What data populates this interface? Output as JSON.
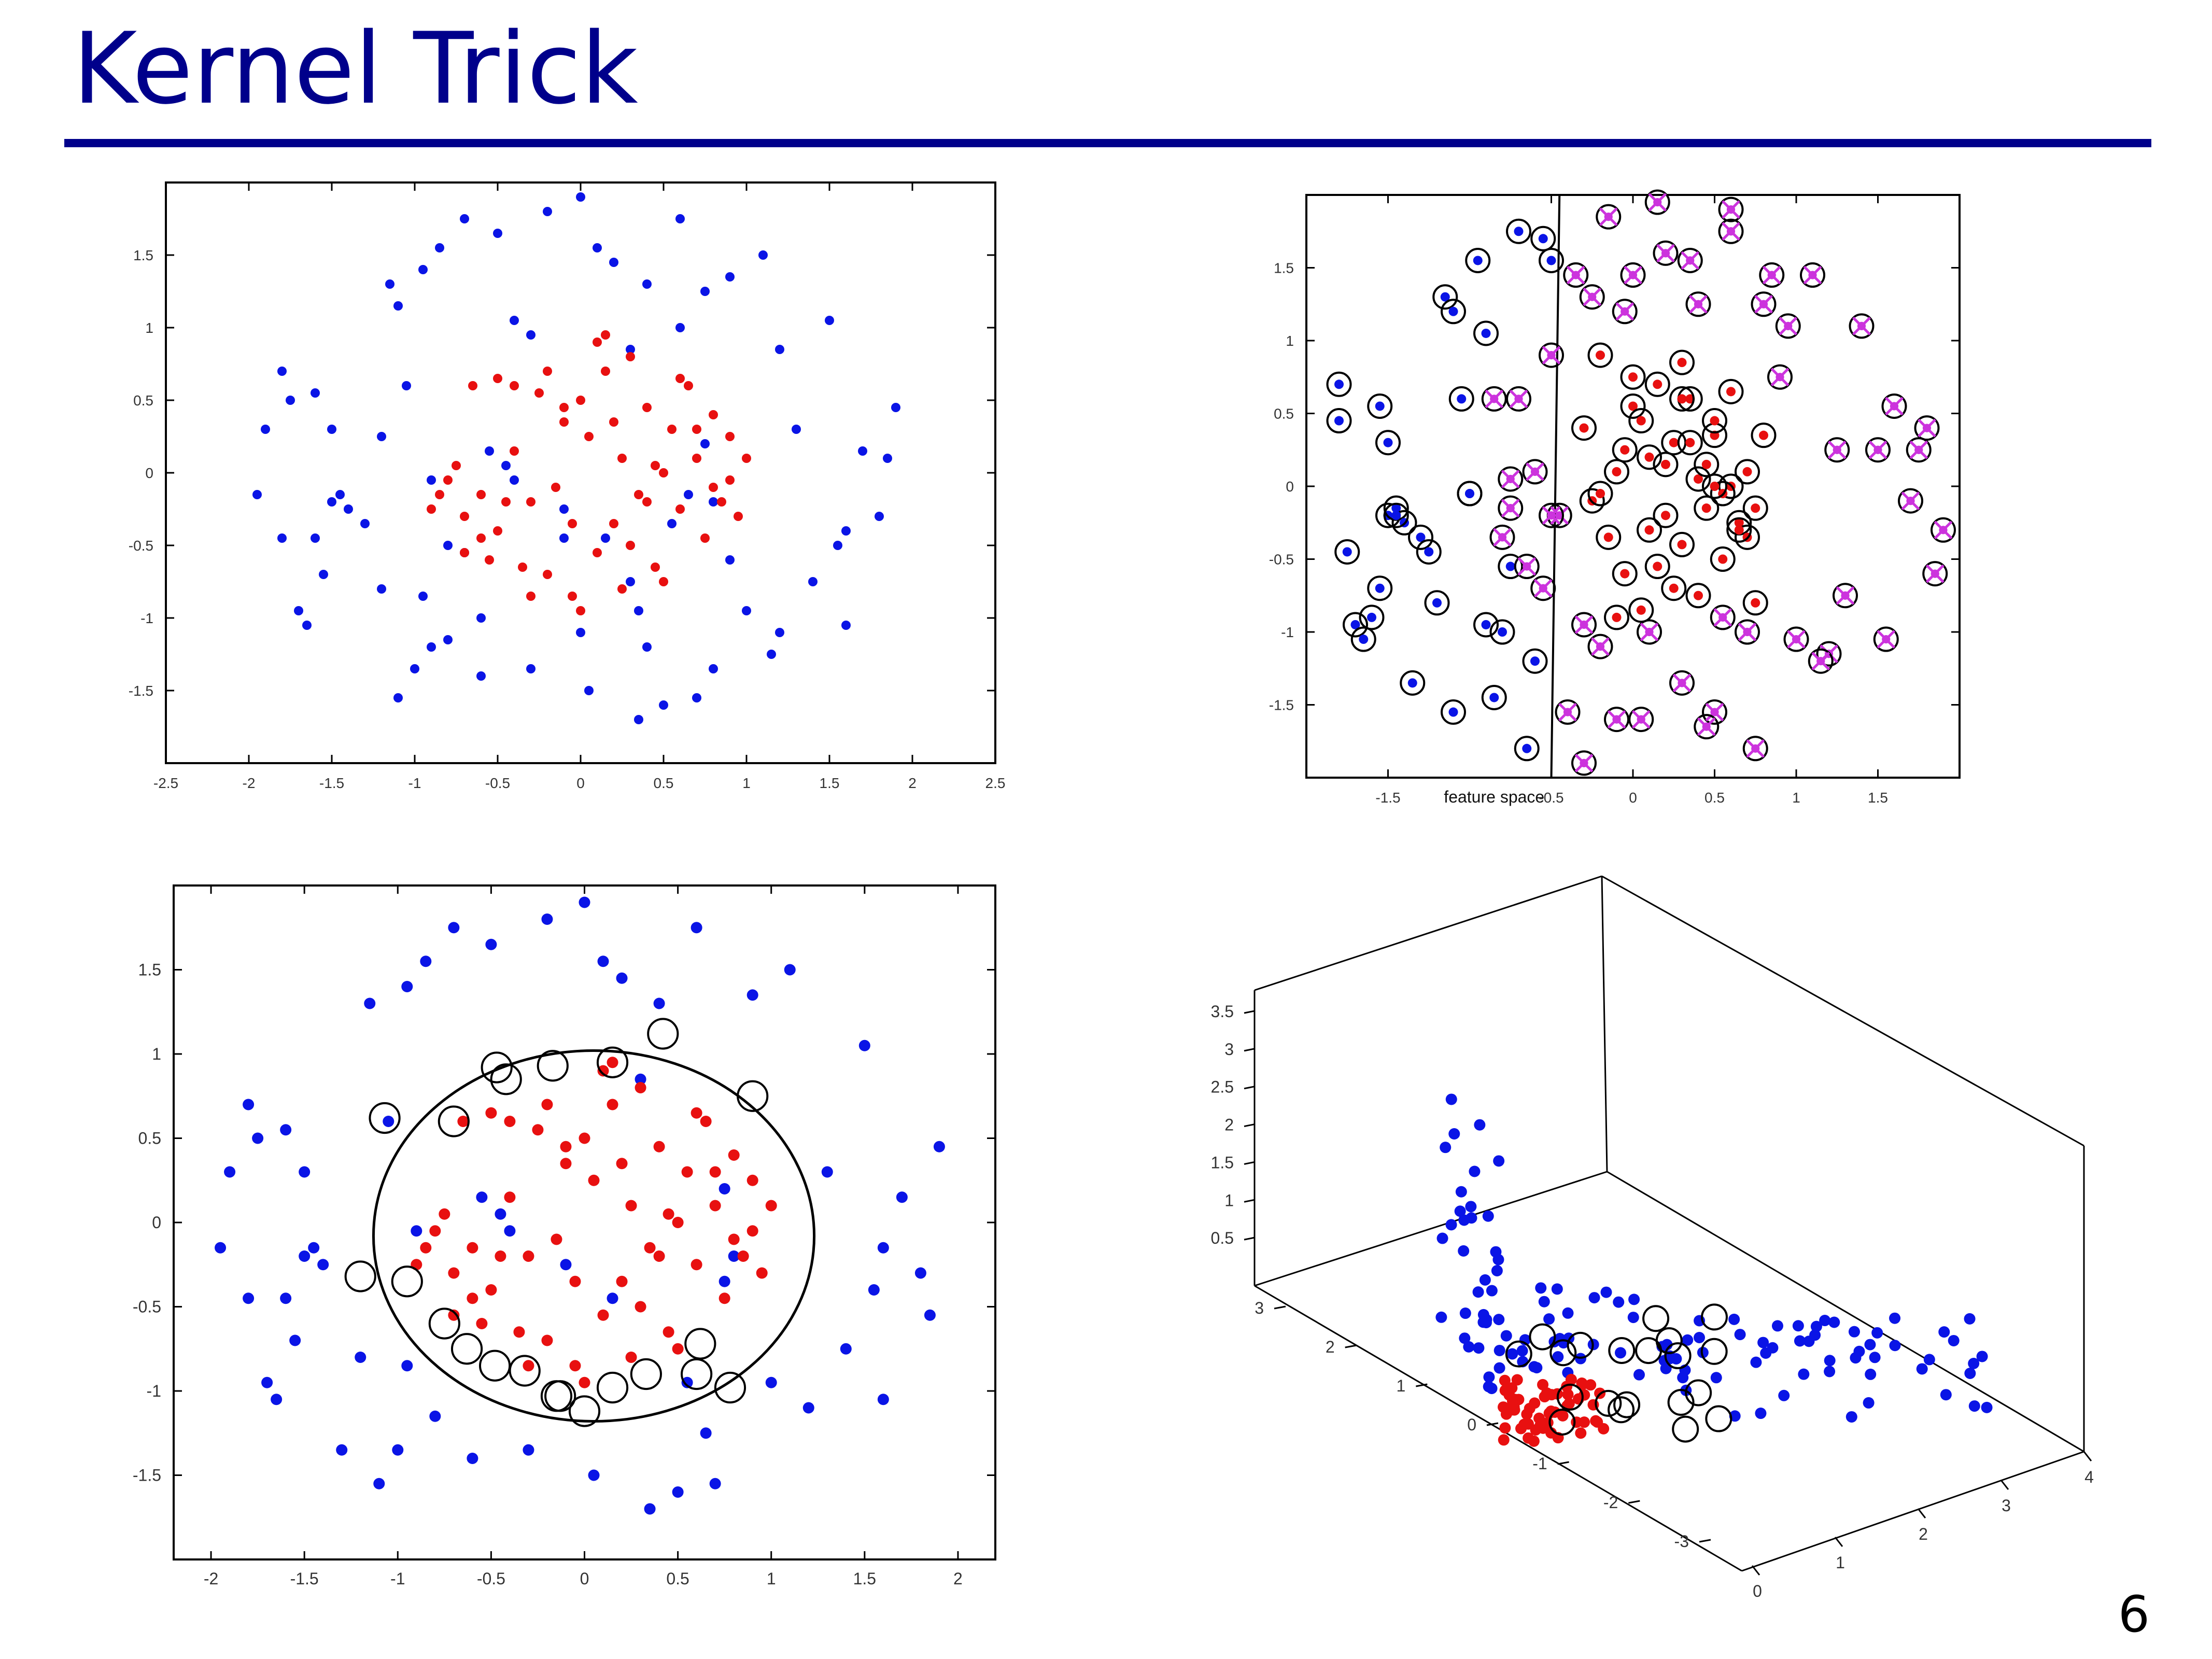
{
  "slide": {
    "title": "Kernel Trick",
    "page_number": "6"
  },
  "colors": {
    "accent": "#00008b",
    "class_outer": "#0000ee",
    "class_inner": "#ee0000",
    "misclassified": "#cc33cc",
    "support_ring": "#000000"
  },
  "chart_data": [
    {
      "type": "scatter",
      "title": "",
      "xlim": [
        -2.5,
        2.5
      ],
      "ylim": [
        -2.0,
        2.0
      ],
      "xticks": [
        "-2.5",
        "-2",
        "-1.5",
        "-1",
        "-0.5",
        "0",
        "0.5",
        "1",
        "1.5",
        "2",
        "2.5"
      ],
      "yticks": [
        "1.5",
        "1",
        "0.5",
        "0",
        "-0.5",
        "-1",
        "-1.5"
      ],
      "grid": false,
      "series": [
        {
          "color": "blue",
          "x": [
            -1.95,
            -1.9,
            -1.8,
            -1.8,
            -1.75,
            -1.7,
            -1.65,
            -1.6,
            -1.55,
            -1.5,
            -1.5,
            -1.45,
            -1.4,
            -1.3,
            -1.2,
            -1.15,
            -1.1,
            -1.05,
            -1.0,
            -0.95,
            -0.9,
            -0.85,
            -0.8,
            -0.7,
            -0.6,
            -0.55,
            -0.5,
            -0.4,
            -0.3,
            -0.2,
            -0.1,
            0.0,
            0.05,
            0.1,
            0.15,
            0.2,
            0.3,
            0.35,
            0.4,
            0.5,
            0.6,
            0.7,
            0.75,
            0.8,
            0.9,
            1.0,
            1.1,
            1.2,
            1.3,
            1.4,
            1.5,
            1.6,
            1.7,
            1.8,
            1.9,
            -1.1,
            -0.9,
            -0.6,
            -0.3,
            0.0,
            0.3,
            0.6,
            0.9,
            1.2,
            -1.2,
            -0.8,
            -0.4,
            0.4,
            0.8,
            1.15,
            1.55,
            1.85,
            -0.95,
            -0.45,
            -0.1,
            0.35,
            0.55,
            0.75,
            -1.6,
            1.6,
            -0.7,
            0.65
          ],
          "y": [
            -0.15,
            0.3,
            0.7,
            -0.45,
            0.5,
            -0.95,
            -1.05,
            0.55,
            -0.7,
            -0.2,
            0.3,
            -0.15,
            -0.25,
            -0.35,
            -0.8,
            1.3,
            -1.55,
            0.6,
            -1.35,
            1.4,
            -0.05,
            1.55,
            -1.15,
            1.75,
            -1.4,
            0.15,
            1.65,
            -0.05,
            -1.35,
            1.8,
            -0.25,
            1.9,
            -1.5,
            1.55,
            -0.45,
            1.45,
            0.85,
            -1.7,
            1.3,
            -1.6,
            1.75,
            -1.55,
            0.2,
            -0.2,
            1.35,
            -0.95,
            1.5,
            -1.1,
            0.3,
            -0.75,
            1.05,
            -1.05,
            0.15,
            -0.3,
            0.45,
            1.15,
            -1.2,
            -1.0,
            0.95,
            -1.1,
            -0.75,
            1.0,
            -0.6,
            0.85,
            0.25,
            -0.5,
            1.05,
            -1.2,
            -1.35,
            -1.25,
            -0.5,
            0.1,
            -0.85,
            0.05,
            -0.45,
            -0.95,
            -0.35,
            1.25,
            -0.45,
            -0.4,
            -0.55,
            -0.15
          ]
        },
        {
          "color": "red",
          "x": [
            -0.9,
            -0.85,
            -0.8,
            -0.75,
            -0.7,
            -0.65,
            -0.6,
            -0.55,
            -0.5,
            -0.45,
            -0.4,
            -0.35,
            -0.3,
            -0.25,
            -0.2,
            -0.15,
            -0.1,
            -0.05,
            0.0,
            0.05,
            0.1,
            0.15,
            0.2,
            0.25,
            0.3,
            0.35,
            0.4,
            0.45,
            0.5,
            0.55,
            0.6,
            0.65,
            0.7,
            0.75,
            0.8,
            0.85,
            0.9,
            0.95,
            1.0,
            -0.7,
            -0.5,
            -0.3,
            -0.1,
            0.1,
            0.3,
            0.5,
            0.7,
            0.9,
            -0.6,
            -0.2,
            0.0,
            0.2,
            0.4,
            0.6,
            0.8,
            -0.4,
            0.15,
            0.45,
            -0.05,
            0.25
          ],
          "y": [
            -0.25,
            -0.15,
            -0.05,
            0.05,
            -0.3,
            0.6,
            -0.15,
            -0.6,
            -0.4,
            -0.2,
            0.15,
            -0.65,
            -0.2,
            0.55,
            -0.7,
            -0.1,
            0.35,
            -0.85,
            0.5,
            0.25,
            -0.55,
            0.7,
            -0.35,
            0.1,
            0.8,
            -0.15,
            0.45,
            -0.65,
            0.0,
            0.3,
            -0.25,
            0.6,
            0.1,
            -0.45,
            0.4,
            -0.2,
            0.25,
            -0.3,
            0.1,
            -0.55,
            0.65,
            -0.85,
            0.45,
            0.9,
            -0.5,
            -0.75,
            0.3,
            -0.05,
            -0.45,
            0.7,
            -0.95,
            0.35,
            -0.2,
            0.65,
            -0.1,
            0.6,
            0.95,
            0.05,
            -0.35,
            -0.8
          ]
        }
      ]
    },
    {
      "type": "scatter",
      "title": "",
      "xlabel": "feature space",
      "xlim": [
        -2.0,
        2.0
      ],
      "ylim": [
        -2.0,
        2.0
      ],
      "xticks": [
        "-1.5",
        "-0.5",
        "0",
        "0.5",
        "1",
        "1.5"
      ],
      "yticks": [
        "1.5",
        "1",
        "0.5",
        "0",
        "-0.5",
        "-1",
        "-1.5"
      ],
      "grid": false,
      "decision_line": {
        "x1": -0.5,
        "y1": -2.0,
        "x2": -0.45,
        "y2": 2.0
      },
      "series": [
        {
          "color": "blue",
          "marker": "dot-ringed",
          "x": [
            -1.8,
            -1.8,
            -1.7,
            -1.65,
            -1.55,
            -1.55,
            -1.5,
            -1.5,
            -1.45,
            -1.4,
            -1.35,
            -1.3,
            -1.2,
            -1.15,
            -1.1,
            -1.05,
            -1.0,
            -0.95,
            -0.9,
            -0.9,
            -0.85,
            -0.8,
            -0.7,
            -0.6,
            -0.55,
            -0.5,
            -1.75,
            -1.6,
            -1.25,
            -1.0,
            -0.75,
            -1.45,
            -1.1,
            -0.65
          ],
          "y": [
            0.7,
            0.45,
            -0.95,
            -1.05,
            0.55,
            -0.7,
            -0.2,
            0.3,
            -0.15,
            -0.25,
            -1.35,
            -0.35,
            -0.8,
            1.3,
            -1.55,
            0.6,
            -0.05,
            1.55,
            -0.95,
            1.05,
            -1.45,
            -1.0,
            1.75,
            -1.2,
            1.7,
            1.55,
            -0.45,
            -0.9,
            -0.45,
            -0.05,
            -0.55,
            -0.2,
            1.2,
            -1.8
          ]
        },
        {
          "color": "red",
          "marker": "dot-ringed",
          "x": [
            -0.3,
            -0.25,
            -0.2,
            -0.15,
            -0.1,
            -0.05,
            0.0,
            0.05,
            0.1,
            0.15,
            0.2,
            0.25,
            0.3,
            0.35,
            0.4,
            0.45,
            0.5,
            0.55,
            0.6,
            0.65,
            0.7,
            0.75,
            0.8,
            -0.1,
            0.0,
            0.1,
            0.2,
            0.3,
            0.4,
            0.5,
            0.6,
            0.7,
            -0.05,
            0.15,
            0.35,
            0.55,
            0.75,
            0.05,
            0.25,
            0.45,
            0.65,
            -0.2,
            0.3,
            0.5
          ],
          "y": [
            0.4,
            -0.1,
            0.9,
            -0.35,
            0.1,
            -0.6,
            0.55,
            -0.85,
            0.2,
            0.7,
            -0.2,
            0.3,
            -0.4,
            0.6,
            0.05,
            -0.15,
            0.35,
            -0.5,
            0.65,
            -0.25,
            0.1,
            -0.8,
            0.35,
            -0.9,
            0.75,
            -0.3,
            0.15,
            0.85,
            -0.75,
            0.45,
            0.0,
            -0.35,
            0.25,
            -0.55,
            0.3,
            -0.05,
            -0.15,
            0.45,
            -0.7,
            0.15,
            -0.3,
            -0.05,
            0.6,
            0.0
          ]
        },
        {
          "color": "magenta",
          "marker": "x-ringed",
          "x": [
            -0.7,
            -0.65,
            -0.6,
            -0.55,
            -0.5,
            -0.45,
            -0.4,
            -0.35,
            -0.3,
            -0.25,
            -0.2,
            -0.15,
            -0.1,
            -0.05,
            0.0,
            0.1,
            0.2,
            0.3,
            0.4,
            0.5,
            0.6,
            0.7,
            0.8,
            0.9,
            1.0,
            1.1,
            1.2,
            1.3,
            1.4,
            1.5,
            1.6,
            1.7,
            1.8,
            1.9,
            -0.75,
            -0.8,
            -0.85,
            -0.75,
            -0.5,
            0.05,
            0.35,
            0.55,
            0.85,
            0.95,
            1.25,
            1.55,
            1.75,
            1.85,
            -0.3,
            0.6,
            0.75,
            0.15,
            0.45,
            1.15
          ],
          "y": [
            0.6,
            -0.55,
            0.1,
            -0.7,
            0.9,
            -0.2,
            -1.55,
            1.45,
            -0.95,
            1.3,
            -1.1,
            1.85,
            -1.6,
            1.2,
            1.45,
            -1.0,
            1.6,
            -1.35,
            1.25,
            -1.55,
            1.75,
            -1.0,
            1.25,
            0.75,
            -1.05,
            1.45,
            -1.15,
            -0.75,
            1.1,
            0.25,
            0.55,
            -0.1,
            0.4,
            -0.3,
            -0.15,
            -0.35,
            0.6,
            0.05,
            -0.2,
            -1.6,
            1.55,
            -0.9,
            1.45,
            1.1,
            0.25,
            -1.05,
            0.25,
            -0.6,
            -1.9,
            1.9,
            -1.8,
            1.95,
            -1.65,
            -1.2
          ]
        }
      ]
    },
    {
      "type": "scatter",
      "title": "",
      "xlim": [
        -2.2,
        2.2
      ],
      "ylim": [
        -2.0,
        2.0
      ],
      "xticks": [
        "-2",
        "-1.5",
        "-1",
        "-0.5",
        "0",
        "0.5",
        "1",
        "1.5",
        "2"
      ],
      "yticks": [
        "1.5",
        "1",
        "0.5",
        "0",
        "-0.5",
        "-1",
        "-1.5"
      ],
      "grid": false,
      "decision_boundary": {
        "shape": "ellipse",
        "cx": 0.05,
        "cy": -0.08,
        "rx": 1.18,
        "ry": 1.1
      },
      "series": [
        {
          "color": "blue",
          "x": [
            -1.95,
            -1.9,
            -1.8,
            -1.8,
            -1.75,
            -1.7,
            -1.65,
            -1.6,
            -1.55,
            -1.5,
            -1.5,
            -1.45,
            -1.4,
            -1.3,
            -1.2,
            -1.15,
            -1.1,
            -1.05,
            -1.0,
            -0.95,
            -0.9,
            -0.85,
            -0.8,
            -0.7,
            -0.6,
            -0.55,
            -0.5,
            -0.4,
            -0.3,
            -0.2,
            -0.1,
            0.0,
            0.05,
            0.1,
            0.15,
            0.2,
            0.3,
            0.35,
            0.4,
            0.5,
            0.6,
            0.7,
            0.75,
            0.8,
            0.9,
            1.0,
            1.1,
            1.2,
            1.3,
            1.4,
            1.5,
            1.6,
            1.7,
            1.8,
            1.9,
            1.55,
            1.85,
            -0.95,
            -0.45,
            0.55,
            0.75,
            -1.6,
            1.6,
            0.65
          ],
          "y": [
            -0.15,
            0.3,
            0.7,
            -0.45,
            0.5,
            -0.95,
            -1.05,
            0.55,
            -0.7,
            -0.2,
            0.3,
            -0.15,
            -0.25,
            -1.35,
            -0.8,
            1.3,
            -1.55,
            0.6,
            -1.35,
            1.4,
            -0.05,
            1.55,
            -1.15,
            1.75,
            -1.4,
            0.15,
            1.65,
            -0.05,
            -1.35,
            1.8,
            -0.25,
            1.9,
            -1.5,
            1.55,
            -0.45,
            1.45,
            0.85,
            -1.7,
            1.3,
            -1.6,
            1.75,
            -1.55,
            0.2,
            -0.2,
            1.35,
            -0.95,
            1.5,
            -1.1,
            0.3,
            -0.75,
            1.05,
            -1.05,
            0.15,
            -0.3,
            0.45,
            -0.4,
            -0.55,
            -0.85,
            0.05,
            -0.95,
            -0.35,
            -0.45,
            -0.15,
            -1.25
          ]
        },
        {
          "color": "red",
          "x": [
            -0.9,
            -0.85,
            -0.8,
            -0.75,
            -0.7,
            -0.65,
            -0.6,
            -0.55,
            -0.5,
            -0.45,
            -0.4,
            -0.35,
            -0.3,
            -0.25,
            -0.2,
            -0.15,
            -0.1,
            -0.05,
            0.0,
            0.05,
            0.1,
            0.15,
            0.2,
            0.25,
            0.3,
            0.35,
            0.4,
            0.45,
            0.5,
            0.55,
            0.6,
            0.65,
            0.7,
            0.75,
            0.8,
            0.85,
            0.9,
            0.95,
            1.0,
            -0.7,
            -0.5,
            -0.3,
            -0.1,
            0.1,
            0.3,
            0.5,
            0.7,
            0.9,
            -0.6,
            -0.2,
            0.0,
            0.2,
            0.4,
            0.6,
            0.8,
            -0.4,
            0.15,
            0.45,
            -0.05,
            0.25
          ],
          "y": [
            -0.25,
            -0.15,
            -0.05,
            0.05,
            -0.3,
            0.6,
            -0.15,
            -0.6,
            -0.4,
            -0.2,
            0.15,
            -0.65,
            -0.2,
            0.55,
            -0.7,
            -0.1,
            0.35,
            -0.85,
            0.5,
            0.25,
            -0.55,
            0.7,
            -0.35,
            0.1,
            0.8,
            -0.15,
            0.45,
            -0.65,
            0.0,
            0.3,
            -0.25,
            0.6,
            0.1,
            -0.45,
            0.4,
            -0.2,
            0.25,
            -0.3,
            0.1,
            -0.55,
            0.65,
            -0.85,
            0.45,
            0.9,
            -0.5,
            -0.75,
            0.3,
            -0.05,
            -0.45,
            0.7,
            -0.95,
            0.35,
            -0.2,
            0.65,
            -0.1,
            0.6,
            0.95,
            0.05,
            -0.35,
            -0.8
          ]
        },
        {
          "color": "support",
          "marker": "ring",
          "x": [
            -1.2,
            -1.07,
            -0.7,
            -0.95,
            -0.75,
            -0.63,
            -0.48,
            -0.32,
            -0.15,
            0.0,
            0.15,
            0.33,
            0.62,
            0.78,
            0.9,
            0.42,
            -0.47,
            -0.17,
            0.15,
            -0.42,
            0.6,
            -0.13
          ],
          "y": [
            -0.32,
            0.62,
            0.6,
            -0.35,
            -0.6,
            -0.75,
            -0.85,
            -0.88,
            -1.03,
            -1.12,
            0.95,
            -0.9,
            -0.72,
            -0.98,
            0.75,
            1.12,
            0.92,
            0.93,
            -0.98,
            0.85,
            -0.9,
            -1.03
          ]
        }
      ]
    },
    {
      "type": "scatter",
      "title": "",
      "projection": "3d",
      "zticks": [
        "3.5",
        "3",
        "2.5",
        "2",
        "1.5",
        "1",
        "0.5"
      ],
      "yticks": [
        "3",
        "2",
        "1",
        "0",
        "-1",
        "-2",
        "-3"
      ],
      "xticks": [
        "0",
        "1",
        "2",
        "3",
        "4"
      ],
      "grid": false,
      "series": [
        {
          "color": "blue",
          "note": "outer class lifted along z (r^2)",
          "count": 120
        },
        {
          "color": "red",
          "note": "inner class concentrated near z=0",
          "count": 60
        },
        {
          "color": "support",
          "note": "support vectors ringed",
          "count": 20
        }
      ]
    }
  ]
}
